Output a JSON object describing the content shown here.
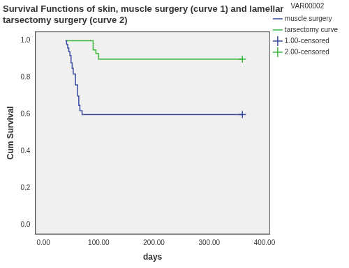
{
  "chart_data": {
    "type": "line",
    "title": "Survival Functions of skin, muscle surgery (curve 1) and lamellar tarsectomy surgery (curve 2)",
    "x_label": "days",
    "y_label": "Cum Survival",
    "legend_title": "VAR00002",
    "legend": "right",
    "grid": false,
    "xlim": [
      -15,
      410
    ],
    "xticks": [
      {
        "value": 0,
        "label": "0.00"
      },
      {
        "value": 100,
        "label": "100.00"
      },
      {
        "value": 200,
        "label": "200.00"
      },
      {
        "value": 300,
        "label": "300.00"
      },
      {
        "value": 400,
        "label": "400.00"
      }
    ],
    "ylim": [
      -0.05,
      1.05
    ],
    "yticks": [
      {
        "value": 0,
        "label": "0.0"
      },
      {
        "value": 0.2,
        "label": "0.2"
      },
      {
        "value": 0.4,
        "label": "0.4"
      },
      {
        "value": 0.6,
        "label": "0.6"
      },
      {
        "value": 0.8,
        "label": "0.8"
      },
      {
        "value": 1,
        "label": "1.0"
      }
    ],
    "series": [
      {
        "name": "muscle surgery",
        "color": "#3a4ba0",
        "marker": "none",
        "line_style": "solid",
        "x": [
          40,
          42,
          44,
          46,
          48,
          50,
          52,
          54,
          58,
          62,
          64,
          66,
          70,
          360
        ],
        "values": [
          1,
          0.98,
          0.96,
          0.94,
          0.92,
          0.88,
          0.85,
          0.82,
          0.76,
          0.7,
          0.65,
          0.62,
          0.6,
          0.6
        ]
      },
      {
        "name": "tarsectomy curve",
        "color": "#3cb83c",
        "marker": "none",
        "line_style": "solid",
        "x": [
          40,
          90,
          95,
          100,
          360
        ],
        "values": [
          1,
          0.95,
          0.93,
          0.9,
          0.9
        ]
      },
      {
        "name": "1.00-censored",
        "color": "#3a4ba0",
        "marker": "cross",
        "line_style": "none",
        "x": [
          360
        ],
        "values": [
          0.6
        ]
      },
      {
        "name": "2.00-censored",
        "color": "#3cb83c",
        "marker": "cross",
        "line_style": "none",
        "x": [
          360
        ],
        "values": [
          0.9
        ]
      }
    ]
  }
}
